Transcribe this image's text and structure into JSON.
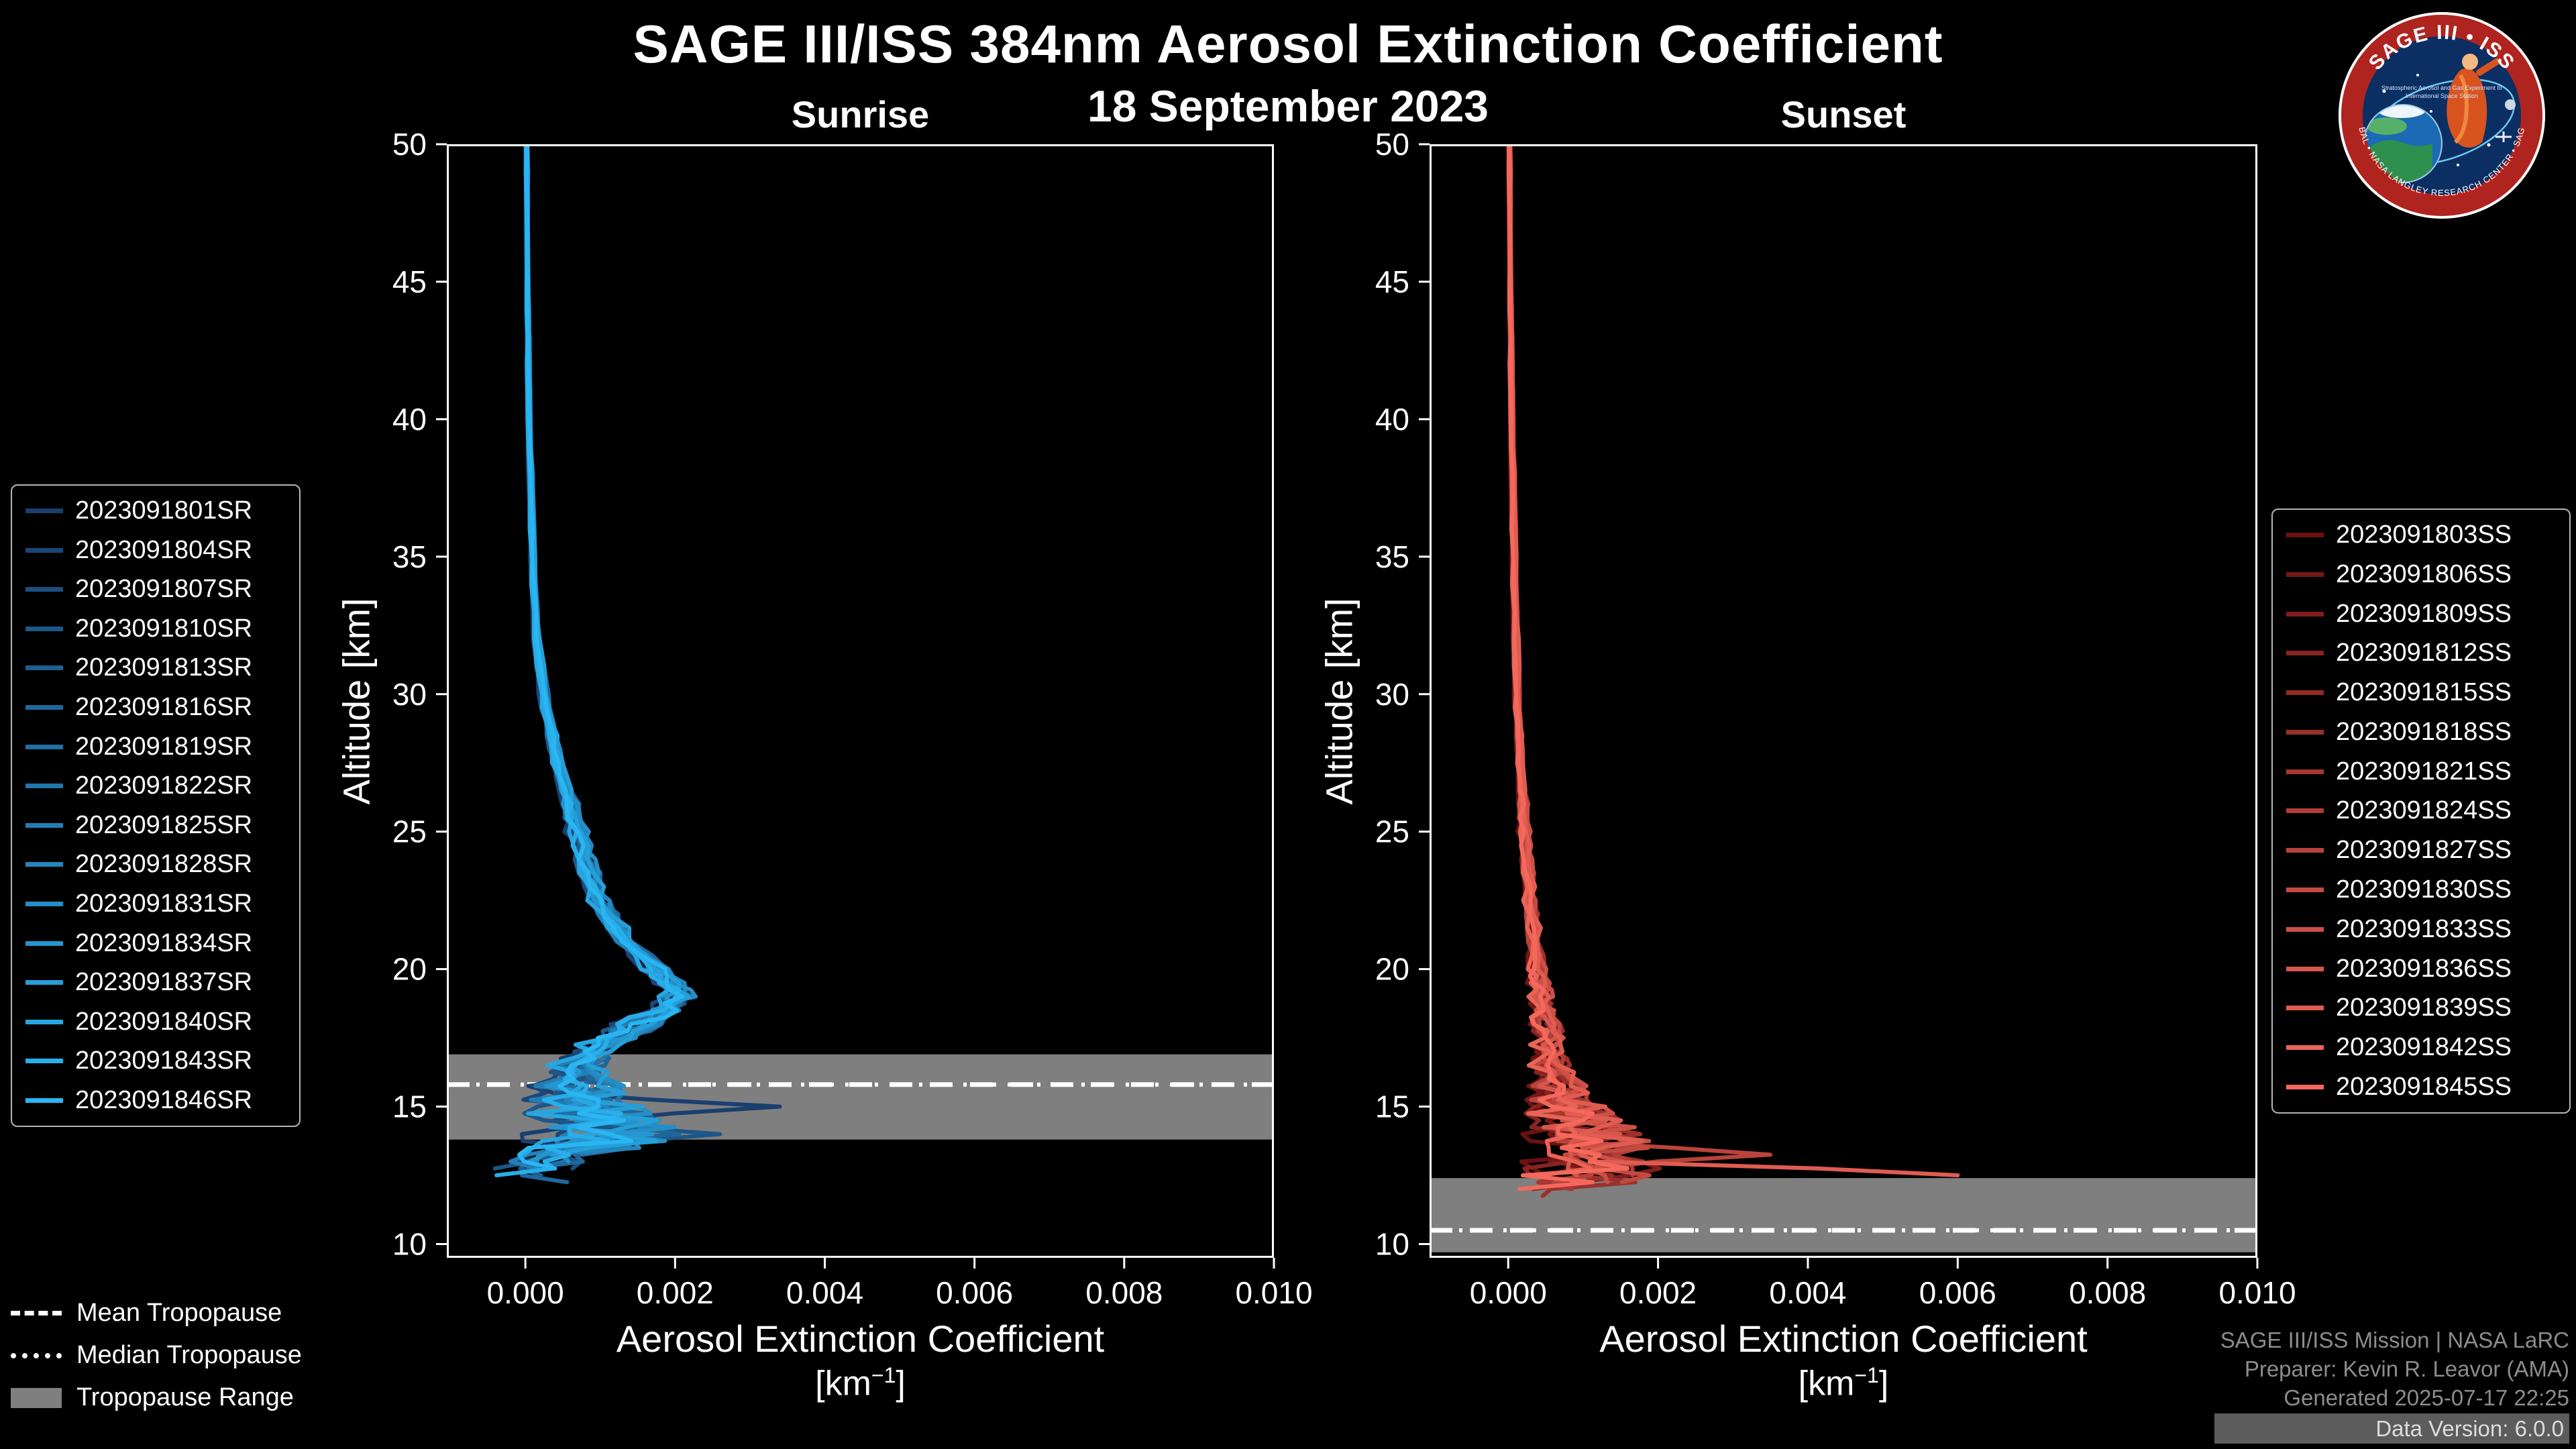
{
  "header": {
    "title": "SAGE III/ISS 384nm Aerosol Extinction Coefficient",
    "date": "18 September 2023"
  },
  "logo": {
    "title": "SAGE III • ISS",
    "subtitle": "Stratospheric Aerosol and Gas Experiment III",
    "subtitle2": "International Space Station",
    "bottom_text": "BAL • NASA LANGLEY RESEARCH CENTER • SAG",
    "ring_color": "#b0241f",
    "field_color": "#0c2f63"
  },
  "tropopause_legend": {
    "mean_label": "Mean Tropopause",
    "median_label": "Median Tropopause",
    "range_label": "Tropopause Range"
  },
  "footer": {
    "line1": "SAGE III/ISS Mission | NASA LaRC",
    "line2": "Preparer: Kevin R. Leavor (AMA)",
    "line3": "Generated 2025-07-17 22:25",
    "line4": "Data Version: 6.0.0"
  },
  "chart_data": [
    {
      "type": "line",
      "title": "Sunrise",
      "xlabel": "Aerosol Extinction Coefficient",
      "units_text": "[km⁻¹]",
      "unit_prefix": "[km",
      "unit_exp": "−1",
      "unit_suffix": "]",
      "ylabel": "Altitude [km]",
      "xlim": [
        -0.00105,
        0.01
      ],
      "ylim": [
        9.5,
        50
      ],
      "xticks": [
        0.0,
        0.002,
        0.004,
        0.006,
        0.008,
        0.01
      ],
      "yticks": [
        10,
        15,
        20,
        25,
        30,
        35,
        40,
        45,
        50
      ],
      "grid": false,
      "legend_position": "outside-left",
      "band_color": "#7f7f7f",
      "tropopause": {
        "mean_km": 15.8,
        "median_km": 15.8,
        "range_km": [
          13.8,
          16.9
        ]
      },
      "profile_alt_km": [
        50,
        45,
        40,
        35,
        32,
        30,
        28,
        26,
        25,
        24,
        23,
        22,
        21,
        20.5,
        20,
        19.5,
        19,
        18.5,
        18,
        17.5,
        17,
        16.5,
        16,
        15.5,
        15,
        14.5,
        14,
        13.5,
        13,
        12.5
      ],
      "profile_mean": [
        2e-05,
        3e-05,
        5e-05,
        0.0001,
        0.00015,
        0.00025,
        0.0004,
        0.0006,
        0.0007,
        0.0008,
        0.0009,
        0.0011,
        0.00135,
        0.00155,
        0.00175,
        0.00195,
        0.00205,
        0.00185,
        0.0015,
        0.00115,
        0.0009,
        0.00075,
        0.0007,
        0.0008,
        0.0009,
        0.001,
        0.0011,
        0.0007,
        0.0003,
        0.0001
      ],
      "profile_sigma": [
        2e-05,
        2e-05,
        3e-05,
        4e-05,
        5e-05,
        8e-05,
        0.0001,
        0.00012,
        0.00015,
        0.00015,
        0.00015,
        0.00015,
        0.00015,
        0.00015,
        0.00015,
        0.00015,
        0.00018,
        0.0002,
        0.00025,
        0.00025,
        0.00025,
        0.0003,
        0.0004,
        0.0005,
        0.0006,
        0.0007,
        0.0008,
        0.0007,
        0.0005,
        0.0004
      ],
      "bottom_alt_km": [
        12.2,
        13.2
      ],
      "spikes": [
        {
          "series": 0,
          "altitude_km": 14.9,
          "value": 0.0034
        },
        {
          "series": 3,
          "altitude_km": 14.1,
          "value": 0.0026
        }
      ],
      "series": [
        {
          "name": "2023091801SR",
          "color": "#1a3f6f"
        },
        {
          "name": "2023091804SR",
          "color": "#1b4778"
        },
        {
          "name": "2023091807SR",
          "color": "#1c4f80"
        },
        {
          "name": "2023091810SR",
          "color": "#1d5789"
        },
        {
          "name": "2023091813SR",
          "color": "#1e5f92"
        },
        {
          "name": "2023091816SR",
          "color": "#1f679b"
        },
        {
          "name": "2023091819SR",
          "color": "#206fa3"
        },
        {
          "name": "2023091822SR",
          "color": "#2177ac"
        },
        {
          "name": "2023091825SR",
          "color": "#227eb5"
        },
        {
          "name": "2023091828SR",
          "color": "#2386be"
        },
        {
          "name": "2023091831SR",
          "color": "#248ec6"
        },
        {
          "name": "2023091834SR",
          "color": "#2596cf"
        },
        {
          "name": "2023091837SR",
          "color": "#269ed8"
        },
        {
          "name": "2023091840SR",
          "color": "#27a6e1"
        },
        {
          "name": "2023091843SR",
          "color": "#28aee9"
        },
        {
          "name": "2023091846SR",
          "color": "#29b6f2"
        }
      ]
    },
    {
      "type": "line",
      "title": "Sunset",
      "xlabel": "Aerosol Extinction Coefficient",
      "units_text": "[km⁻¹]",
      "unit_prefix": "[km",
      "unit_exp": "−1",
      "unit_suffix": "]",
      "ylabel": "Altitude [km]",
      "xlim": [
        -0.00105,
        0.01
      ],
      "ylim": [
        9.5,
        50
      ],
      "xticks": [
        0.0,
        0.002,
        0.004,
        0.006,
        0.008,
        0.01
      ],
      "yticks": [
        10,
        15,
        20,
        25,
        30,
        35,
        40,
        45,
        50
      ],
      "grid": false,
      "legend_position": "outside-right",
      "band_color": "#7f7f7f",
      "tropopause": {
        "mean_km": 10.5,
        "median_km": 10.5,
        "range_km": [
          9.7,
          12.4
        ]
      },
      "profile_alt_km": [
        50,
        45,
        40,
        35,
        30,
        27,
        25,
        23,
        21,
        20,
        19,
        18,
        17,
        16,
        15.5,
        15,
        14.5,
        14,
        13.5,
        13,
        12.7,
        12.4,
        12,
        11.7
      ],
      "profile_mean": [
        2e-05,
        3e-05,
        5e-05,
        8e-05,
        0.00012,
        0.00018,
        0.00022,
        0.00028,
        0.00035,
        0.0004,
        0.00045,
        0.0005,
        0.00055,
        0.00065,
        0.00075,
        0.00085,
        0.00095,
        0.00105,
        0.0011,
        0.00115,
        0.0013,
        0.0011,
        0.0006,
        0.0003
      ],
      "profile_sigma": [
        2e-05,
        2e-05,
        3e-05,
        4e-05,
        5e-05,
        6e-05,
        8e-05,
        8e-05,
        0.0001,
        0.0001,
        0.00012,
        0.00015,
        0.00018,
        0.00025,
        0.0003,
        0.0004,
        0.0005,
        0.0006,
        0.00065,
        0.0007,
        0.0008,
        0.0008,
        0.0005,
        0.0003
      ],
      "bottom_alt_km": [
        11.7,
        12.5
      ],
      "spikes": [
        {
          "series": 12,
          "altitude_km": 12.6,
          "value": 0.006
        },
        {
          "series": 8,
          "altitude_km": 13.2,
          "value": 0.0035
        }
      ],
      "series": [
        {
          "name": "2023091803SS",
          "color": "#6b1111"
        },
        {
          "name": "2023091806SS",
          "color": "#751716"
        },
        {
          "name": "2023091809SS",
          "color": "#7f1e1c"
        },
        {
          "name": "2023091812SS",
          "color": "#882421"
        },
        {
          "name": "2023091815SS",
          "color": "#922a26"
        },
        {
          "name": "2023091818SS",
          "color": "#9c302c"
        },
        {
          "name": "2023091821SS",
          "color": "#a63731"
        },
        {
          "name": "2023091824SS",
          "color": "#b03d37"
        },
        {
          "name": "2023091827SS",
          "color": "#b9433c"
        },
        {
          "name": "2023091830SS",
          "color": "#c34a41"
        },
        {
          "name": "2023091833SS",
          "color": "#cd5047"
        },
        {
          "name": "2023091836SS",
          "color": "#d7564c"
        },
        {
          "name": "2023091839SS",
          "color": "#e05c51"
        },
        {
          "name": "2023091842SS",
          "color": "#ea6357"
        },
        {
          "name": "2023091845SS",
          "color": "#f4695c"
        }
      ]
    }
  ]
}
